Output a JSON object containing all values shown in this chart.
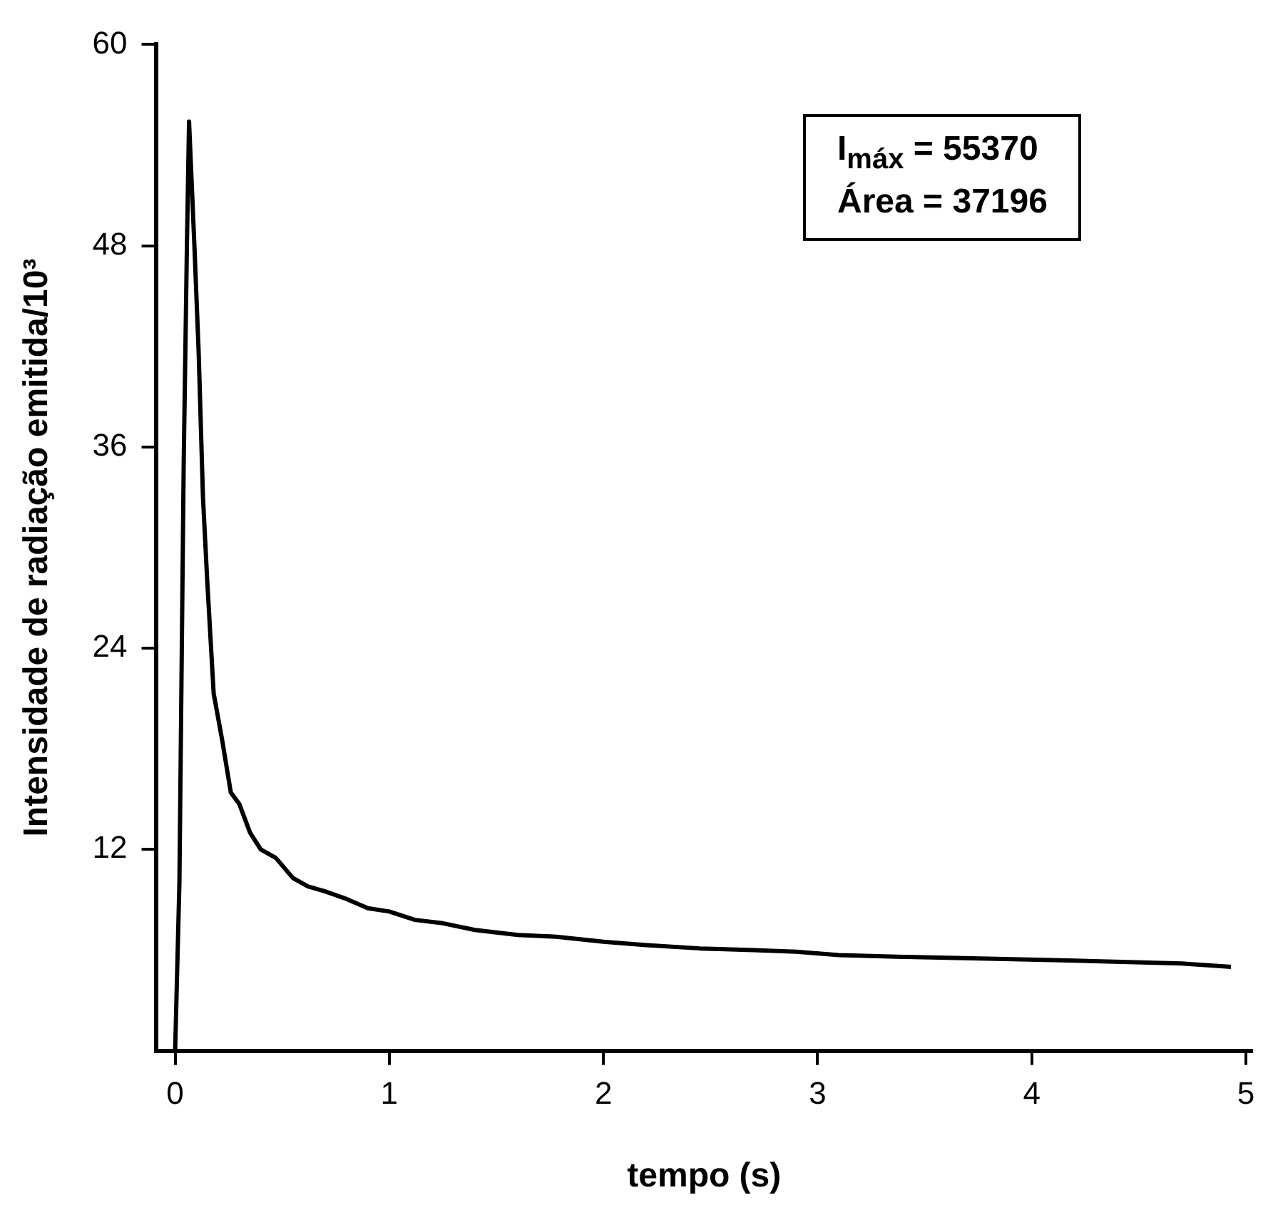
{
  "chart_data": {
    "type": "line",
    "xlabel": "tempo (s)",
    "ylabel": "Intensidade de radiação emitida/10³",
    "annotations": [
      "I$_{máx}$ = 55370",
      "Área = 37196"
    ],
    "xlim": [
      -0.09,
      5.03
    ],
    "ylim": [
      0,
      60
    ],
    "xticks": [
      0,
      1,
      2,
      3,
      4,
      5
    ],
    "yticks": [
      12,
      24,
      36,
      48,
      60
    ],
    "grid": false,
    "legend": false,
    "marker": "none",
    "line_style": "solid",
    "series": [
      {
        "color": "#000000",
        "x": [
          0,
          0.02,
          0.04,
          0.055,
          0.065,
          0.09,
          0.11,
          0.13,
          0.15,
          0.18,
          0.22,
          0.26,
          0.3,
          0.35,
          0.4,
          0.47,
          0.55,
          0.62,
          0.7,
          0.79,
          0.9,
          1.0,
          1.12,
          1.25,
          1.4,
          1.6,
          1.78,
          2.0,
          2.2,
          2.45,
          2.7,
          2.9,
          3.1,
          3.4,
          3.76,
          4.1,
          4.42,
          4.7,
          4.93
        ],
        "values": [
          0,
          10,
          35,
          48,
          55.4,
          48,
          41.6,
          33,
          28,
          21.3,
          18.5,
          15.4,
          14.7,
          13,
          12,
          11.5,
          10.3,
          9.8,
          9.5,
          9.1,
          8.5,
          8.3,
          7.8,
          7.6,
          7.2,
          6.9,
          6.8,
          6.5,
          6.3,
          6.1,
          6.0,
          5.9,
          5.7,
          5.6,
          5.5,
          5.4,
          5.3,
          5.2,
          5.0
        ]
      }
    ]
  }
}
